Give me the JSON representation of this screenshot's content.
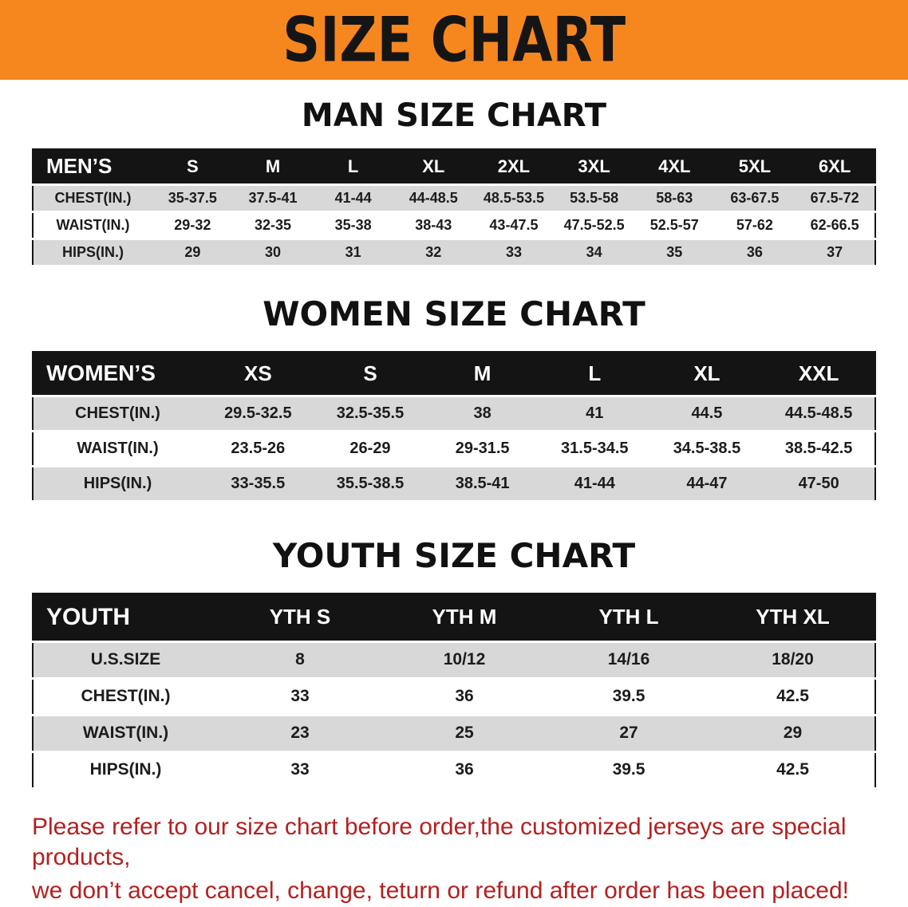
{
  "banner": {
    "title": "SIZE CHART",
    "bg_color": "#f6871f"
  },
  "colors": {
    "table_header_bg": "#141414",
    "row_alt_bg": "#d8d8d8",
    "note_color": "#b42020"
  },
  "sections": [
    {
      "heading": "MAN SIZE CHART",
      "table": {
        "header": [
          "MEN’S",
          "S",
          "M",
          "L",
          "XL",
          "2XL",
          "3XL",
          "4XL",
          "5XL",
          "6XL"
        ],
        "rows": [
          [
            "CHEST(IN.)",
            "35-37.5",
            "37.5-41",
            "41-44",
            "44-48.5",
            "48.5-53.5",
            "53.5-58",
            "58-63",
            "63-67.5",
            "67.5-72"
          ],
          [
            "WAIST(IN.)",
            "29-32",
            "32-35",
            "35-38",
            "38-43",
            "43-47.5",
            "47.5-52.5",
            "52.5-57",
            "57-62",
            "62-66.5"
          ],
          [
            "HIPS(IN.)",
            "29",
            "30",
            "31",
            "32",
            "33",
            "34",
            "35",
            "36",
            "37"
          ]
        ]
      }
    },
    {
      "heading": "WOMEN SIZE CHART",
      "table": {
        "header": [
          "WOMEN’S",
          "XS",
          "S",
          "M",
          "L",
          "XL",
          "XXL"
        ],
        "rows": [
          [
            "CHEST(IN.)",
            "29.5-32.5",
            "32.5-35.5",
            "38",
            "41",
            "44.5",
            "44.5-48.5"
          ],
          [
            "WAIST(IN.)",
            "23.5-26",
            "26-29",
            "29-31.5",
            "31.5-34.5",
            "34.5-38.5",
            "38.5-42.5"
          ],
          [
            "HIPS(IN.)",
            "33-35.5",
            "35.5-38.5",
            "38.5-41",
            "41-44",
            "44-47",
            "47-50"
          ]
        ]
      }
    },
    {
      "heading": "YOUTH SIZE CHART",
      "table": {
        "header": [
          "YOUTH",
          "YTH S",
          "YTH M",
          "YTH L",
          "YTH XL"
        ],
        "rows": [
          [
            "U.S.SIZE",
            "8",
            "10/12",
            "14/16",
            "18/20"
          ],
          [
            "CHEST(IN.)",
            "33",
            "36",
            "39.5",
            "42.5"
          ],
          [
            "WAIST(IN.)",
            "23",
            "25",
            "27",
            "29"
          ],
          [
            "HIPS(IN.)",
            "33",
            "36",
            "39.5",
            "42.5"
          ]
        ]
      }
    }
  ],
  "footer_note": {
    "line1": "Please refer to our size chart before order,the customized jerseys are special products,",
    "line2": "we don’t accept cancel, change, teturn or refund after order has been placed!",
    "color": "#b42020"
  }
}
